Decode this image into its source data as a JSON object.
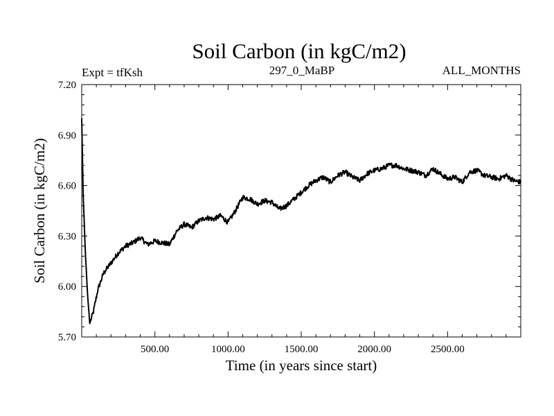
{
  "chart_data": {
    "type": "line",
    "title": "Soil Carbon (in kgC/m2)",
    "subtitle_left": "Expt = tfKsh",
    "subtitle_center": "297_0_MaBP",
    "subtitle_right": "ALL_MONTHS",
    "xlabel": "Time (in years since start)",
    "ylabel": "Soil Carbon (in kgC/m2)",
    "xlim": [
      0,
      3000
    ],
    "ylim": [
      5.7,
      7.2
    ],
    "x_ticks": [
      500,
      1000,
      1500,
      2000,
      2500
    ],
    "x_tick_labels": [
      "500.00",
      "1000.00",
      "1500.00",
      "2000.00",
      "2500.00"
    ],
    "y_ticks": [
      5.7,
      6.0,
      6.3,
      6.6,
      6.9,
      7.2
    ],
    "y_tick_labels": [
      "5.70",
      "6.00",
      "6.30",
      "6.60",
      "6.90",
      "7.20"
    ],
    "series": [
      {
        "name": "Soil Carbon",
        "color": "#000000",
        "x": [
          0,
          10,
          25,
          40,
          55,
          80,
          110,
          150,
          200,
          250,
          300,
          350,
          400,
          450,
          500,
          550,
          600,
          650,
          700,
          750,
          800,
          850,
          900,
          950,
          1000,
          1050,
          1100,
          1150,
          1200,
          1250,
          1300,
          1350,
          1400,
          1450,
          1500,
          1550,
          1600,
          1650,
          1700,
          1750,
          1800,
          1850,
          1900,
          1950,
          2000,
          2050,
          2100,
          2150,
          2200,
          2250,
          2300,
          2350,
          2400,
          2450,
          2500,
          2550,
          2600,
          2650,
          2700,
          2750,
          2800,
          2850,
          2900,
          2950,
          3000
        ],
        "values": [
          7.0,
          6.55,
          6.2,
          5.95,
          5.78,
          5.85,
          5.98,
          6.08,
          6.14,
          6.2,
          6.24,
          6.26,
          6.29,
          6.25,
          6.27,
          6.26,
          6.25,
          6.33,
          6.37,
          6.35,
          6.39,
          6.41,
          6.4,
          6.42,
          6.38,
          6.45,
          6.53,
          6.52,
          6.49,
          6.51,
          6.5,
          6.46,
          6.48,
          6.52,
          6.56,
          6.6,
          6.63,
          6.65,
          6.62,
          6.66,
          6.68,
          6.65,
          6.63,
          6.67,
          6.69,
          6.7,
          6.72,
          6.72,
          6.7,
          6.69,
          6.68,
          6.66,
          6.7,
          6.67,
          6.64,
          6.65,
          6.62,
          6.68,
          6.69,
          6.66,
          6.65,
          6.64,
          6.66,
          6.63,
          6.62
        ]
      }
    ]
  }
}
